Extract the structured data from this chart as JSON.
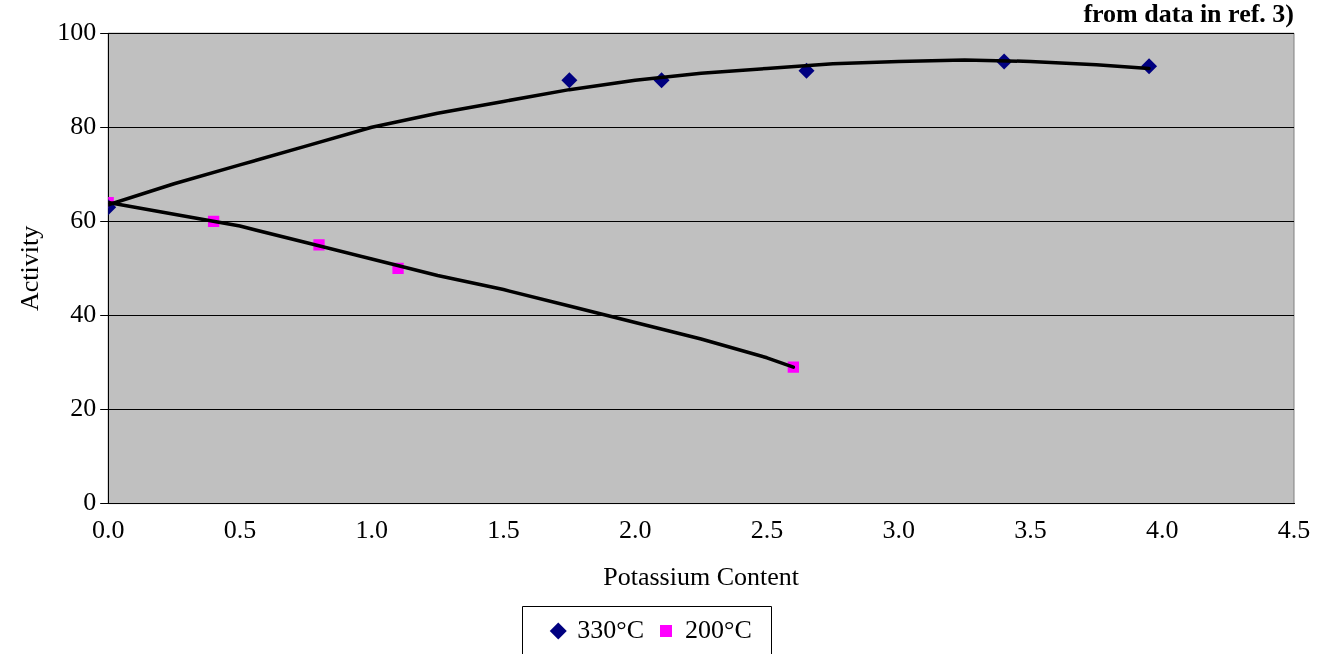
{
  "chart_data": {
    "type": "scatter",
    "title": "from data in ref. 3)",
    "xlabel": "Potassium Content",
    "ylabel": "Activity",
    "xlim": [
      0,
      4.5
    ],
    "xticks": [
      {
        "value": 0,
        "label": "0.0"
      },
      {
        "value": 0.5,
        "label": "0.5"
      },
      {
        "value": 1,
        "label": "1.0"
      },
      {
        "value": 1.5,
        "label": "1.5"
      },
      {
        "value": 2,
        "label": "2.0"
      },
      {
        "value": 2.5,
        "label": "2.5"
      },
      {
        "value": 3,
        "label": "3.0"
      },
      {
        "value": 3.5,
        "label": "3.5"
      },
      {
        "value": 4,
        "label": "4.0"
      },
      {
        "value": 4.5,
        "label": "4.5"
      }
    ],
    "ylim": [
      0,
      100
    ],
    "yticks": [
      0,
      20,
      40,
      60,
      80,
      100
    ],
    "grid": "y",
    "legend": "bottom",
    "series": [
      {
        "name": "330°C",
        "type": "scatter",
        "marker": "diamond",
        "color": "#000080",
        "x": [
          0,
          1.75,
          2.1,
          2.65,
          3.4,
          3.95
        ],
        "values": [
          63,
          90,
          90,
          92,
          94,
          93
        ]
      },
      {
        "name": "200°C",
        "type": "scatter",
        "marker": "square",
        "color": "#ff00ff",
        "x": [
          0,
          0.4,
          0.8,
          1.1,
          2.6
        ],
        "values": [
          64,
          60,
          55,
          50,
          29
        ]
      },
      {
        "type": "line",
        "marker": "none",
        "color": "#000000",
        "x": [
          0,
          0.25,
          0.5,
          0.75,
          1,
          1.25,
          1.5,
          1.75,
          2,
          2.25,
          2.5,
          2.75,
          3,
          3.25,
          3.5,
          3.75,
          3.95
        ],
        "values": [
          63.5,
          68,
          72,
          76,
          80,
          83,
          85.5,
          88,
          90,
          91.5,
          92.5,
          93.5,
          94,
          94.3,
          94,
          93.3,
          92.5
        ]
      },
      {
        "type": "line",
        "marker": "none",
        "color": "#000000",
        "x": [
          0,
          0.25,
          0.5,
          0.75,
          1,
          1.25,
          1.5,
          1.75,
          2,
          2.25,
          2.5,
          2.6
        ],
        "values": [
          64,
          61.5,
          59,
          55.5,
          52,
          48.5,
          45.5,
          42,
          38.5,
          35,
          31,
          29
        ]
      }
    ]
  }
}
